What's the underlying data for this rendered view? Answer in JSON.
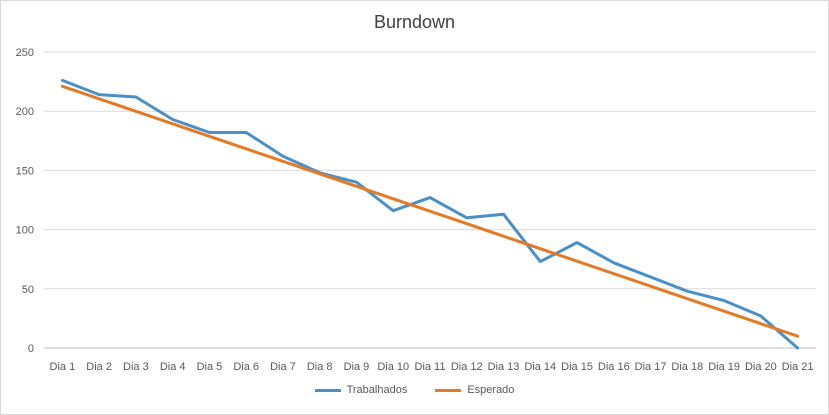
{
  "chart_data": {
    "type": "line",
    "title": "Burndown",
    "xlabel": "",
    "ylabel": "",
    "ylim": [
      0,
      250
    ],
    "yticks": [
      0,
      50,
      100,
      150,
      200,
      250
    ],
    "grid": true,
    "legend_position": "bottom",
    "categories": [
      "Dia 1",
      "Dia 2",
      "Dia 3",
      "Dia 4",
      "Dia 5",
      "Dia 6",
      "Dia 7",
      "Dia 8",
      "Dia 9",
      "Dia 10",
      "Dia 11",
      "Dia 12",
      "Dia 13",
      "Dia 14",
      "Dia 15",
      "Dia 16",
      "Dia 17",
      "Dia 18",
      "Dia 19",
      "Dia 20",
      "Dia 21"
    ],
    "series": [
      {
        "name": "Trabalhados",
        "color": "#4a90c8",
        "values": [
          226,
          214,
          212,
          193,
          182,
          182,
          162,
          148,
          140,
          116,
          127,
          110,
          113,
          73,
          89,
          72,
          60,
          48,
          40,
          27,
          0
        ]
      },
      {
        "name": "Esperado",
        "color": "#e27a26",
        "values": [
          221,
          210.45,
          199.9,
          189.35,
          178.8,
          168.25,
          157.7,
          147.15,
          136.6,
          126.05,
          115.5,
          104.95,
          94.4,
          83.85,
          73.3,
          62.75,
          52.2,
          41.65,
          31.1,
          20.55,
          10
        ]
      }
    ]
  }
}
